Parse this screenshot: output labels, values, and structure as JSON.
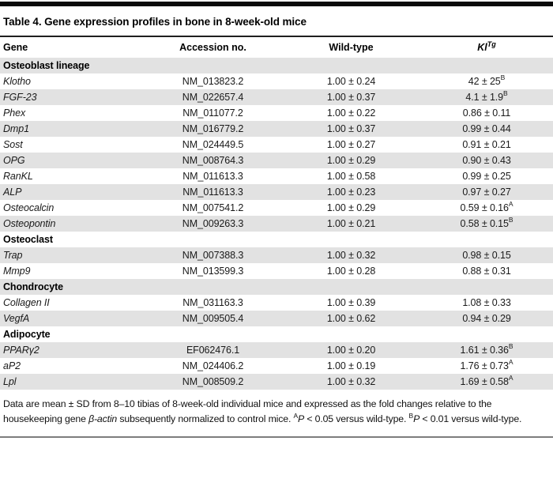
{
  "table": {
    "title": "Table 4. Gene expression profiles in bone in 8-week-old mice",
    "columns": {
      "gene": "Gene",
      "accession": "Accession no.",
      "wild_type": "Wild-type",
      "kl_base": "Kl",
      "kl_sup": "Tg"
    },
    "sections": [
      {
        "name": "Osteoblast lineage",
        "rows": [
          {
            "gene": "Klotho",
            "accession": "NM_013823.2",
            "wild_type": "1.00 ± 0.24",
            "kl": "42 ± 25",
            "kl_sup": "B"
          },
          {
            "gene": "FGF-23",
            "accession": "NM_022657.4",
            "wild_type": "1.00 ± 0.37",
            "kl": "4.1 ± 1.9",
            "kl_sup": "B"
          },
          {
            "gene": "Phex",
            "accession": "NM_011077.2",
            "wild_type": "1.00 ± 0.22",
            "kl": "0.86 ± 0.11",
            "kl_sup": ""
          },
          {
            "gene": "Dmp1",
            "accession": "NM_016779.2",
            "wild_type": "1.00 ± 0.37",
            "kl": "0.99 ± 0.44",
            "kl_sup": ""
          },
          {
            "gene": "Sost",
            "accession": "NM_024449.5",
            "wild_type": "1.00 ± 0.27",
            "kl": "0.91 ± 0.21",
            "kl_sup": ""
          },
          {
            "gene": "OPG",
            "accession": "NM_008764.3",
            "wild_type": "1.00 ± 0.29",
            "kl": "0.90 ± 0.43",
            "kl_sup": ""
          },
          {
            "gene": "RanKL",
            "accession": "NM_011613.3",
            "wild_type": "1.00 ± 0.58",
            "kl": "0.99 ± 0.25",
            "kl_sup": ""
          },
          {
            "gene": "ALP",
            "accession": "NM_011613.3",
            "wild_type": "1.00 ± 0.23",
            "kl": "0.97 ± 0.27",
            "kl_sup": ""
          },
          {
            "gene": "Osteocalcin",
            "accession": "NM_007541.2",
            "wild_type": "1.00 ± 0.29",
            "kl": "0.59 ± 0.16",
            "kl_sup": "A"
          },
          {
            "gene": "Osteopontin",
            "accession": "NM_009263.3",
            "wild_type": "1.00 ± 0.21",
            "kl": "0.58 ± 0.15",
            "kl_sup": "B"
          }
        ]
      },
      {
        "name": "Osteoclast",
        "rows": [
          {
            "gene": "Trap",
            "accession": "NM_007388.3",
            "wild_type": "1.00 ± 0.32",
            "kl": "0.98 ± 0.15",
            "kl_sup": ""
          },
          {
            "gene": "Mmp9",
            "accession": "NM_013599.3",
            "wild_type": "1.00 ± 0.28",
            "kl": "0.88 ± 0.31",
            "kl_sup": ""
          }
        ]
      },
      {
        "name": "Chondrocyte",
        "rows": [
          {
            "gene": "Collagen II",
            "accession": "NM_031163.3",
            "wild_type": "1.00 ± 0.39",
            "kl": "1.08 ± 0.33",
            "kl_sup": ""
          },
          {
            "gene": "VegfA",
            "accession": "NM_009505.4",
            "wild_type": "1.00 ± 0.62",
            "kl": "0.94 ± 0.29",
            "kl_sup": ""
          }
        ]
      },
      {
        "name": "Adipocyte",
        "rows": [
          {
            "gene": "PPARγ2",
            "accession": "EF062476.1",
            "wild_type": "1.00 ± 0.20",
            "kl": "1.61 ± 0.36",
            "kl_sup": "B"
          },
          {
            "gene": "aP2",
            "accession": "NM_024406.2",
            "wild_type": "1.00 ± 0.19",
            "kl": "1.76 ± 0.73",
            "kl_sup": "A"
          },
          {
            "gene": "Lpl",
            "accession": "NM_008509.2",
            "wild_type": "1.00 ± 0.32",
            "kl": "1.69 ± 0.58",
            "kl_sup": "A"
          }
        ]
      }
    ],
    "footnote": {
      "part1": "Data are mean ± SD from 8–10 tibias of 8-week-old individual mice and expressed as the fold changes relative to the housekeeping gene ",
      "gene_italic": "β-actin",
      "part2": " subsequently normalized to control mice. ",
      "sup_a": "A",
      "p_italic_1": "P",
      "part3": " < 0.05 versus wild-type. ",
      "sup_b": "B",
      "p_italic_2": "P",
      "part4": " < 0.01 versus wild-type."
    },
    "colors": {
      "stripe_gray": "#e2e2e2",
      "top_bar_black": "#0a0a0a",
      "bottom_rule_gray": "#7d7d7d"
    }
  }
}
